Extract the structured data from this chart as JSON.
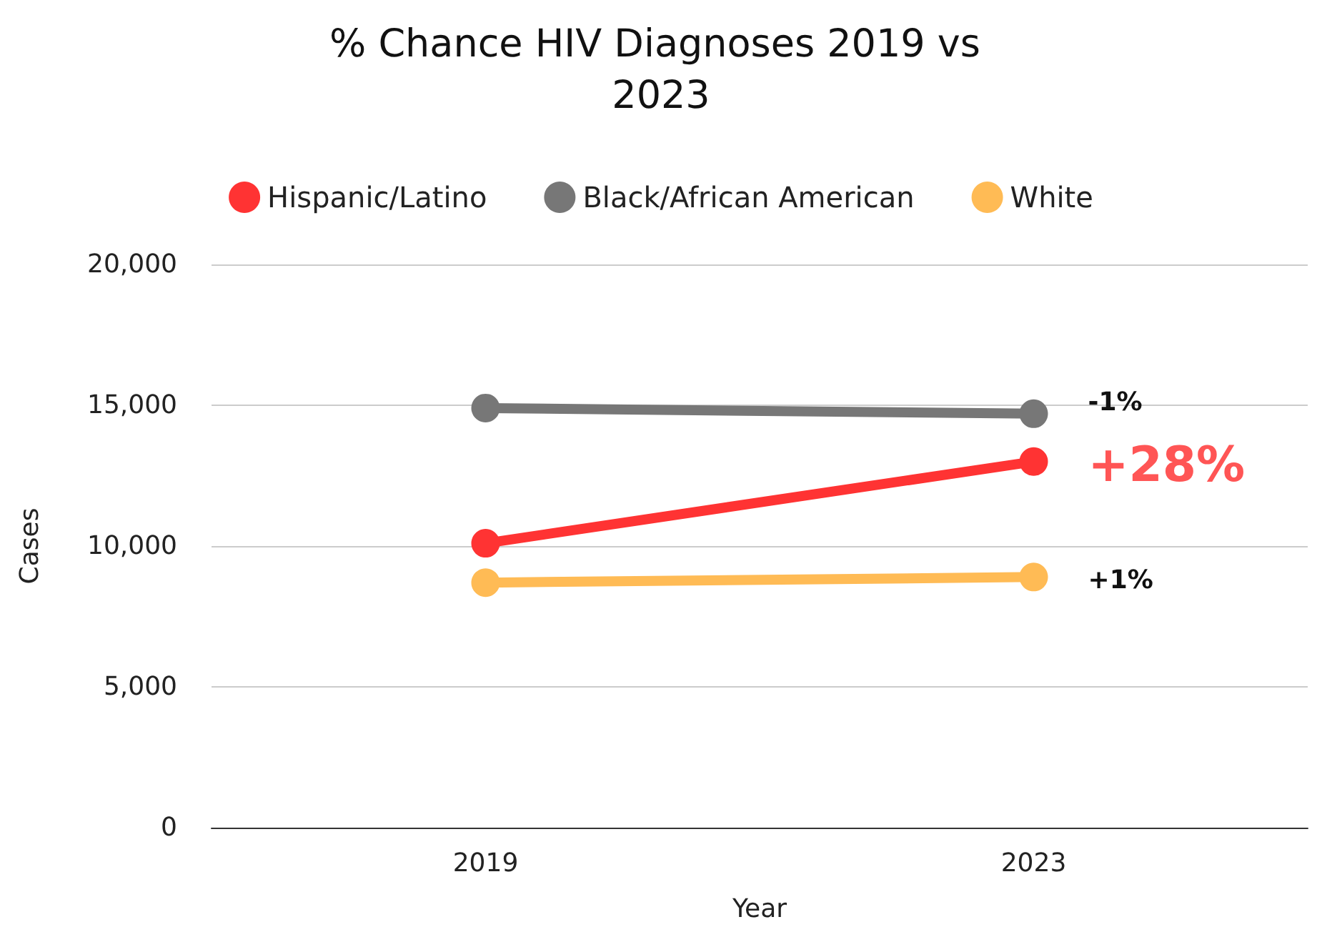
{
  "chart_data": {
    "type": "line",
    "title": "% Chance HIV Diagnoses 2019 vs 2023",
    "xlabel": "Year",
    "ylabel": "Cases",
    "categories": [
      "2019",
      "2023"
    ],
    "series": [
      {
        "name": "Hispanic/Latino",
        "color": "#ff3333",
        "values": [
          10100,
          13000
        ]
      },
      {
        "name": "Black/African American",
        "color": "#777777",
        "values": [
          14900,
          14700
        ]
      },
      {
        "name": "White",
        "color": "#ffbb55",
        "values": [
          8700,
          8900
        ]
      }
    ],
    "annotations": [
      {
        "text": "-1%",
        "x": "2023",
        "y": 15000
      },
      {
        "text": "+28%",
        "x": "2023",
        "y": 12700
      },
      {
        "text": "+1%",
        "x": "2023",
        "y": 8700
      }
    ],
    "ylim": [
      0,
      20000
    ],
    "yticks": [
      0,
      {
        "value": 5000,
        "label": "5,000"
      },
      {
        "value": 10000,
        "label": "10,000"
      },
      {
        "value": 15000,
        "label": "15,000"
      },
      {
        "value": 20000,
        "label": "20,000"
      }
    ],
    "grid": "y",
    "legend": "top",
    "marker": "circle",
    "line_style": "solid"
  }
}
